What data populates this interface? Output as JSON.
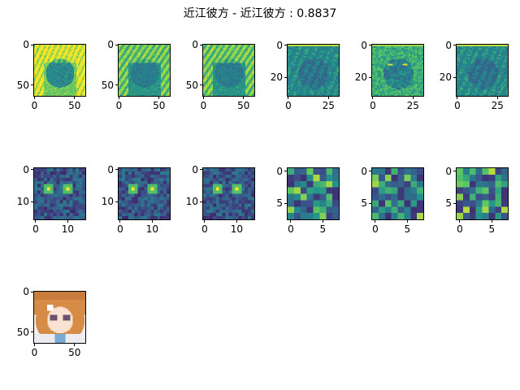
{
  "title": "近江彼方 - 近江彼方 : 0.8837",
  "colors": {
    "viridis": [
      "#440154",
      "#3b528b",
      "#21918c",
      "#5ec962",
      "#fde725"
    ]
  },
  "chart_data": [
    {
      "type": "heatmap",
      "name": "feature-map-1",
      "size": 64,
      "colormap": "viridis",
      "xticks": [
        "0",
        "50"
      ],
      "yticks": [
        "0",
        "50"
      ],
      "pattern": "face-bright"
    },
    {
      "type": "heatmap",
      "name": "feature-map-2",
      "size": 64,
      "colormap": "viridis",
      "xticks": [
        "0",
        "50"
      ],
      "yticks": [
        "0",
        "50"
      ],
      "pattern": "face-mid"
    },
    {
      "type": "heatmap",
      "name": "feature-map-3",
      "size": 64,
      "colormap": "viridis",
      "xticks": [
        "0",
        "50"
      ],
      "yticks": [
        "0",
        "50"
      ],
      "pattern": "face-mid"
    },
    {
      "type": "heatmap",
      "name": "feature-map-4",
      "size": 32,
      "colormap": "viridis",
      "xticks": [
        "0",
        "25"
      ],
      "yticks": [
        "0",
        "20"
      ],
      "pattern": "dark-topbar"
    },
    {
      "type": "heatmap",
      "name": "feature-map-5",
      "size": 32,
      "colormap": "viridis",
      "xticks": [
        "0",
        "25"
      ],
      "yticks": [
        "0",
        "20"
      ],
      "pattern": "teal-topbar"
    },
    {
      "type": "heatmap",
      "name": "feature-map-6",
      "size": 32,
      "colormap": "viridis",
      "xticks": [
        "0",
        "25"
      ],
      "yticks": [
        "0",
        "20"
      ],
      "pattern": "dark-topbar"
    },
    {
      "type": "heatmap",
      "name": "feature-map-7",
      "size": 16,
      "colormap": "viridis",
      "xticks": [
        "0",
        "10"
      ],
      "yticks": [
        "0",
        "10"
      ],
      "pattern": "eyes"
    },
    {
      "type": "heatmap",
      "name": "feature-map-8",
      "size": 16,
      "colormap": "viridis",
      "xticks": [
        "0",
        "10"
      ],
      "yticks": [
        "0",
        "10"
      ],
      "pattern": "eyes"
    },
    {
      "type": "heatmap",
      "name": "feature-map-9",
      "size": 16,
      "colormap": "viridis",
      "xticks": [
        "0",
        "10"
      ],
      "yticks": [
        "0",
        "10"
      ],
      "pattern": "eyes"
    },
    {
      "type": "heatmap",
      "name": "feature-map-10",
      "size": 8,
      "colormap": "viridis",
      "xticks": [
        "0",
        "5"
      ],
      "yticks": [
        "0",
        "5"
      ],
      "pattern": "coarse"
    },
    {
      "type": "heatmap",
      "name": "feature-map-11",
      "size": 8,
      "colormap": "viridis",
      "xticks": [
        "0",
        "5"
      ],
      "yticks": [
        "0",
        "5"
      ],
      "pattern": "coarse"
    },
    {
      "type": "heatmap",
      "name": "feature-map-12",
      "size": 8,
      "colormap": "viridis",
      "xticks": [
        "0",
        "5"
      ],
      "yticks": [
        "0",
        "5"
      ],
      "pattern": "coarse"
    },
    {
      "type": "image",
      "name": "input-image",
      "size": 64,
      "xticks": [
        "0",
        "50"
      ],
      "yticks": [
        "0",
        "50"
      ],
      "pattern": "portrait"
    }
  ]
}
